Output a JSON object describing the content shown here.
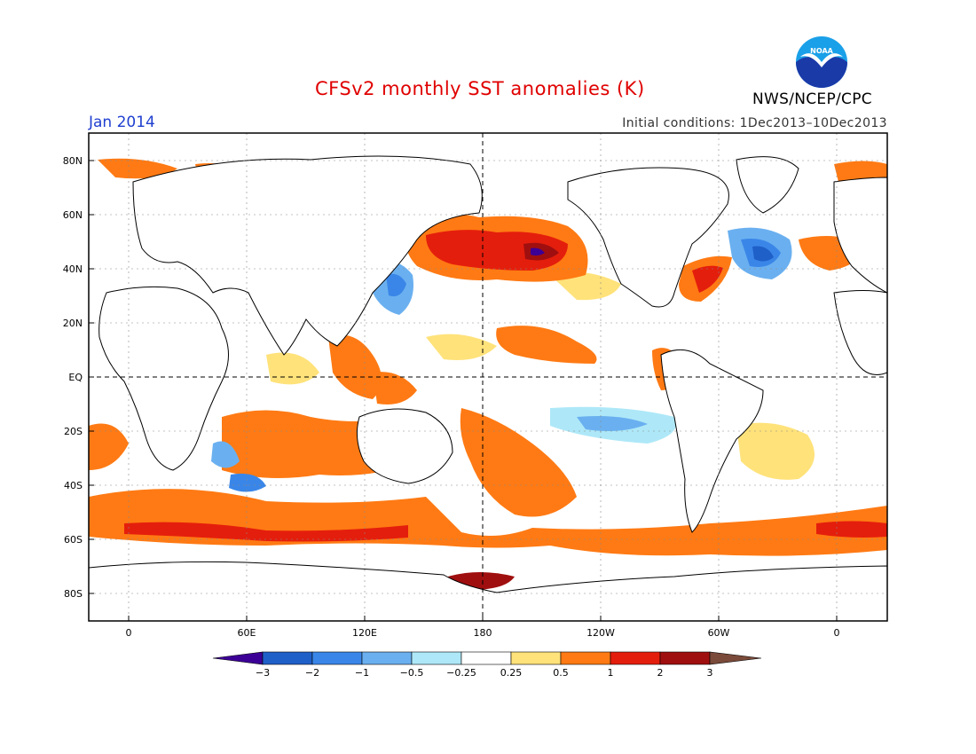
{
  "header": {
    "title": "CFSv2 monthly SST anomalies (K)",
    "month": "Jan 2014",
    "initial_conditions": "Initial conditions: 1Dec2013–10Dec2013",
    "agency": "NWS/NCEP/CPC",
    "logo_text": "NOAA",
    "logo_icon": "noaa-seagull-logo-icon"
  },
  "map": {
    "projection": "cylindrical-equidistant",
    "lon_ticks": [
      "0",
      "60E",
      "120E",
      "180",
      "120W",
      "60W",
      "0"
    ],
    "lat_ticks": [
      "80N",
      "60N",
      "40N",
      "20N",
      "EQ",
      "20S",
      "40S",
      "60S",
      "80S"
    ],
    "grid": "dotted",
    "reference_lines": [
      "EQ",
      "180"
    ],
    "anomaly_regions": [
      {
        "region": "North Pacific (central)",
        "value": 2.0
      },
      {
        "region": "North Pacific (core)",
        "value": 3.0
      },
      {
        "region": "Northwest Pacific (Japan)",
        "value": -0.5
      },
      {
        "region": "North Atlantic (south of Greenland)",
        "value": -1.0
      },
      {
        "region": "North Atlantic (core)",
        "value": -2.0
      },
      {
        "region": "Gulf Stream",
        "value": 2.0
      },
      {
        "region": "Southwest Pacific (Tasman)",
        "value": 1.0
      },
      {
        "region": "Southern Indian Ocean",
        "value": 1.0
      },
      {
        "region": "Southern Ocean band",
        "value": 1.0
      },
      {
        "region": "Equatorial East Pacific",
        "value": -0.5
      },
      {
        "region": "Ross Sea",
        "value": 3.0
      }
    ]
  },
  "colorbar": {
    "labels": [
      "−3",
      "−2",
      "−1",
      "−0.5",
      "−0.25",
      "0.25",
      "0.5",
      "1",
      "2",
      "3"
    ],
    "colors": [
      "#3c0096",
      "#1f5fc8",
      "#3a86e8",
      "#6ab0f0",
      "#aee8f8",
      "#ffffff",
      "#ffe27a",
      "#ff7a14",
      "#e41e0c",
      "#a00f0f",
      "#7a4a3a"
    ]
  }
}
